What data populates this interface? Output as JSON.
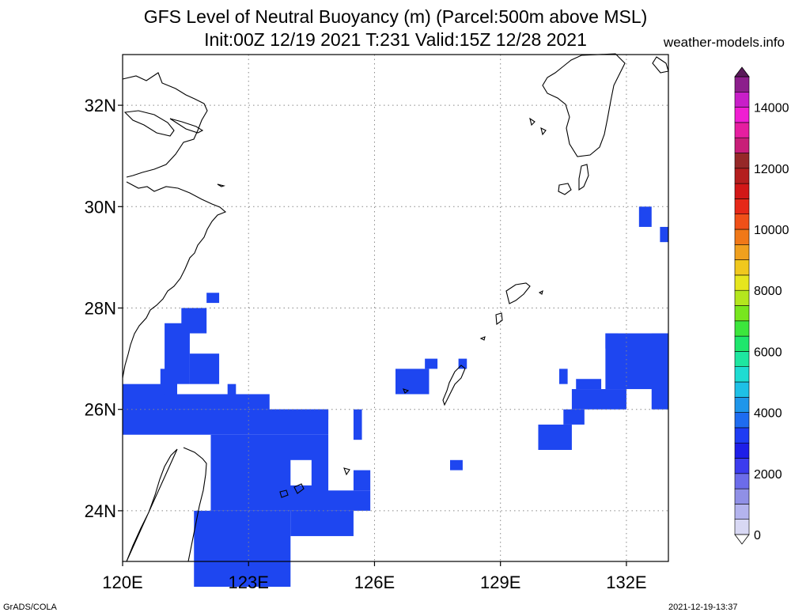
{
  "title": {
    "line1": "GFS Level of Neutral Buoyancy (m) (Parcel:500m above MSL)",
    "line2": "Init:00Z 12/19 2021 T:231 Valid:15Z 12/28 2021",
    "site": "weather-models.info"
  },
  "axes": {
    "lon_ticks": [
      "120E",
      "123E",
      "126E",
      "129E",
      "132E"
    ],
    "lat_ticks": [
      "24N",
      "26N",
      "28N",
      "30N",
      "32N"
    ],
    "lon_range": [
      120,
      133
    ],
    "lat_range": [
      23,
      33
    ]
  },
  "colorbar": {
    "labels": [
      "0",
      "2000",
      "4000",
      "6000",
      "8000",
      "10000",
      "12000",
      "14000"
    ],
    "levels": [
      0,
      500,
      1000,
      1500,
      2000,
      2500,
      3000,
      3500,
      4000,
      4500,
      5000,
      5500,
      6000,
      6500,
      7000,
      7500,
      8000,
      8500,
      9000,
      9500,
      10000,
      10500,
      11000,
      11500,
      12000,
      12500,
      13000,
      13500,
      14000,
      14500,
      15000
    ],
    "colors": [
      "#d8d8f4",
      "#b4b4ee",
      "#9090e6",
      "#6c6cea",
      "#3c3cee",
      "#1e1ee8",
      "#1e3cf4",
      "#1e6cf0",
      "#1e96ea",
      "#1ec0e6",
      "#1edcd2",
      "#1ee6a0",
      "#1ee66c",
      "#3ce63c",
      "#78e61e",
      "#b4e61e",
      "#e6e61e",
      "#f0c81e",
      "#f0a01e",
      "#f07818",
      "#f05018",
      "#e62818",
      "#d21818",
      "#b41e1e",
      "#962828",
      "#c81e78",
      "#e61ea0",
      "#f01ed2",
      "#c81ec8",
      "#8c1e8c"
    ]
  },
  "field": {
    "value_m": 1900,
    "color": "#1e46f0",
    "cell_size_deg": 0.25
  },
  "footer": {
    "left": "GrADS/COLA",
    "right": "2021-12-19-13:37"
  }
}
